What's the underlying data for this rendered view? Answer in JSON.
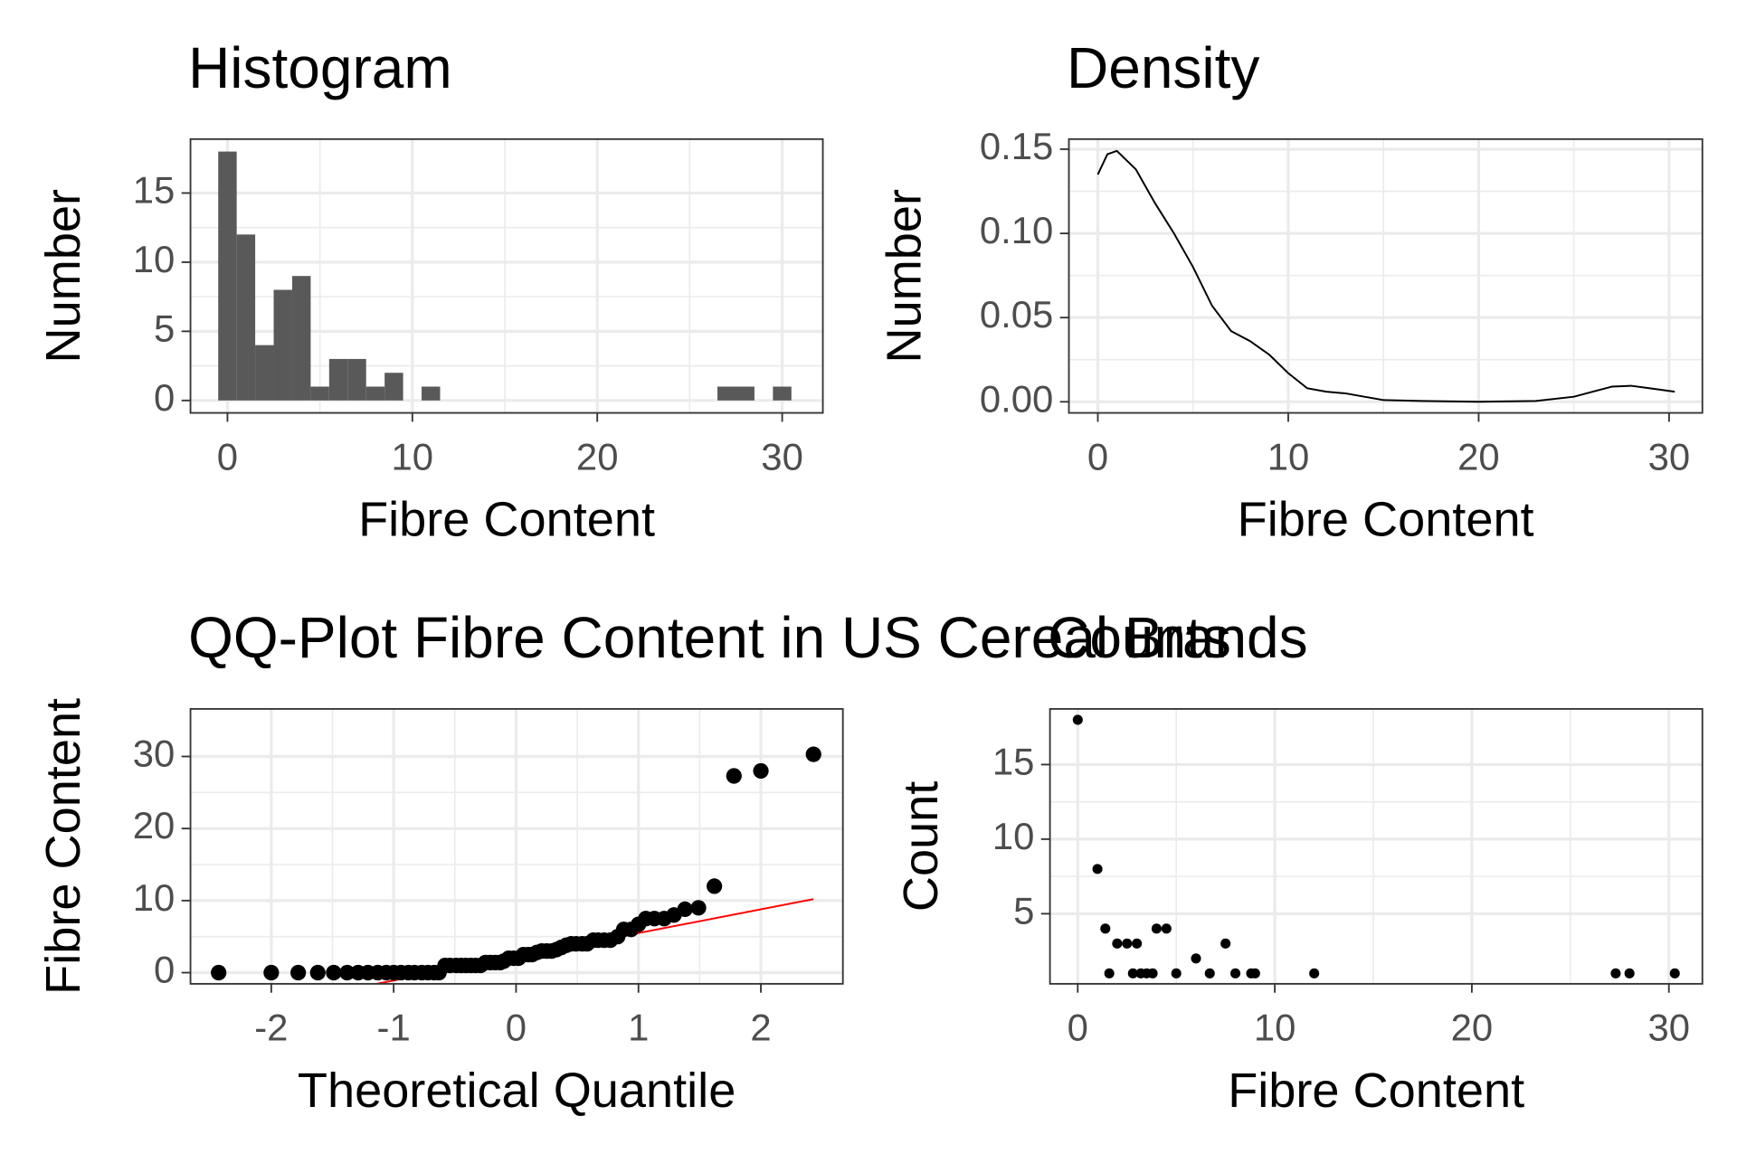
{
  "chart_data": [
    {
      "type": "histogram",
      "title": "Histogram",
      "xlabel": "Fibre Content",
      "ylabel": "Number",
      "bins": [
        -0.5,
        0.5,
        1.5,
        2.5,
        3.5,
        4.5,
        5.5,
        6.5,
        7.5,
        8.5,
        9.5,
        10.5,
        11.5,
        12.5,
        13.5,
        14.5,
        15.5,
        16.5,
        17.5,
        18.5,
        19.5,
        20.5,
        21.5,
        22.5,
        23.5,
        24.5,
        25.5,
        26.5,
        27.5,
        28.5,
        29.5,
        30.5
      ],
      "values": [
        18,
        12,
        4,
        8,
        9,
        1,
        3,
        3,
        1,
        2,
        0,
        1,
        0,
        0,
        0,
        0,
        0,
        0,
        0,
        0,
        0,
        0,
        0,
        0,
        0,
        0,
        0,
        1,
        1,
        0,
        1
      ],
      "color": "#595959",
      "xlim": [
        -2.0,
        32.2
      ],
      "ylim": [
        -0.9,
        18.9
      ],
      "xticks": [
        0,
        10,
        20,
        30
      ],
      "yticks": [
        0,
        5,
        10,
        15
      ],
      "grid": true
    },
    {
      "type": "line",
      "title": "Density",
      "xlabel": "Fibre Content",
      "ylabel": "Number",
      "x": [
        0,
        0.5,
        1,
        2,
        3,
        4,
        5,
        6,
        7,
        8,
        9,
        10,
        11,
        12,
        13,
        14,
        15,
        17,
        20,
        23,
        25,
        26,
        27,
        28,
        29,
        30.3
      ],
      "values": [
        0.135,
        0.147,
        0.149,
        0.138,
        0.118,
        0.1,
        0.08,
        0.057,
        0.042,
        0.036,
        0.028,
        0.017,
        0.008,
        0.006,
        0.005,
        0.003,
        0.001,
        0.0005,
        0,
        0.0005,
        0.003,
        0.006,
        0.009,
        0.0095,
        0.008,
        0.006
      ],
      "color": "#000000",
      "xlim": [
        -1.52,
        31.75
      ],
      "ylim": [
        -0.0066,
        0.156
      ],
      "xticks": [
        0,
        10,
        20,
        30
      ],
      "yticks": [
        {
          "value": 0,
          "label": "0.00"
        },
        {
          "value": 0.05,
          "label": "0.05"
        },
        {
          "value": 0.1,
          "label": "0.10"
        },
        {
          "value": 0.15,
          "label": "0.15"
        }
      ],
      "grid": true
    },
    {
      "type": "scatter",
      "title": "QQ-Plot Fibre Content in US Cereal Brands",
      "xlabel": "Theoretical Quantile",
      "ylabel": "Fibre Content",
      "x": [
        -2.43,
        -2.0,
        -1.78,
        -1.62,
        -1.49,
        -1.38,
        -1.29,
        -1.21,
        -1.13,
        -1.06,
        -1.0,
        -0.94,
        -0.88,
        -0.83,
        -0.77,
        -0.72,
        -0.67,
        -0.63,
        -0.58,
        -0.54,
        -0.49,
        -0.45,
        -0.41,
        -0.37,
        -0.33,
        -0.29,
        -0.25,
        -0.21,
        -0.17,
        -0.13,
        -0.1,
        -0.06,
        -0.02,
        0.02,
        0.06,
        0.1,
        0.13,
        0.17,
        0.21,
        0.25,
        0.29,
        0.33,
        0.37,
        0.41,
        0.45,
        0.49,
        0.54,
        0.58,
        0.63,
        0.67,
        0.72,
        0.77,
        0.83,
        0.88,
        0.94,
        1.0,
        1.06,
        1.13,
        1.21,
        1.29,
        1.38,
        1.49,
        1.62,
        1.78,
        2.0,
        2.43
      ],
      "values": [
        0,
        0,
        0,
        0,
        0,
        0,
        0,
        0,
        0,
        0,
        0,
        0,
        0,
        0,
        0,
        0,
        0,
        0,
        1,
        1,
        1,
        1,
        1,
        1,
        1,
        1,
        1.4,
        1.4,
        1.4,
        1.4,
        1.6,
        2,
        2,
        2,
        2.5,
        2.5,
        2.5,
        2.8,
        3,
        3,
        3,
        3.2,
        3.5,
        3.8,
        4,
        4,
        4,
        4,
        4.5,
        4.5,
        4.5,
        4.5,
        5,
        6,
        6,
        6.7,
        7.5,
        7.5,
        7.5,
        8,
        8.8,
        9,
        12,
        27.3,
        28,
        30.3
      ],
      "color": "#000000",
      "reference_line": {
        "x": [
          -2.43,
          2.43
        ],
        "values": [
          -5.8,
          10.2
        ],
        "color": "#ff0000"
      },
      "xlim": [
        -2.66,
        2.67
      ],
      "ylim": [
        -1.55,
        36.6
      ],
      "xticks": [
        -2,
        -1,
        0,
        1,
        2
      ],
      "yticks": [
        0,
        10,
        20,
        30
      ],
      "grid": true
    },
    {
      "type": "scatter",
      "title": "Counts",
      "xlabel": "Fibre Content",
      "ylabel": "Count",
      "x": [
        0,
        1,
        1.4,
        1.6,
        2,
        2.5,
        2.8,
        3,
        3.2,
        3.5,
        3.8,
        4,
        4.5,
        5,
        6,
        6.7,
        7.5,
        8,
        8.8,
        9,
        12,
        27.3,
        28,
        30.3
      ],
      "values": [
        18,
        8,
        4,
        1,
        3,
        3,
        1,
        3,
        1,
        1,
        1,
        4,
        4,
        1,
        2,
        1,
        3,
        1,
        1,
        1,
        1,
        1,
        1,
        1
      ],
      "color": "#000000",
      "xlim": [
        -1.41,
        31.7
      ],
      "ylim": [
        0.3,
        18.73
      ],
      "xticks": [
        0,
        10,
        20,
        30
      ],
      "yticks": [
        5,
        10,
        15
      ],
      "grid": true
    }
  ]
}
